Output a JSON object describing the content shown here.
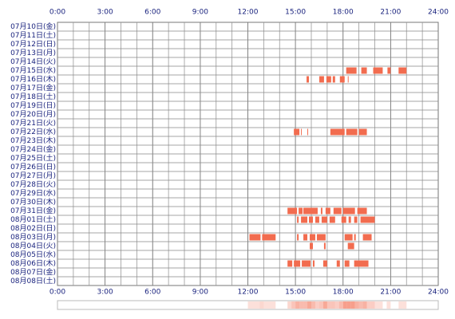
{
  "chart_data": {
    "type": "timeline",
    "categories": [
      "07月10日(金)",
      "07月11日(土)",
      "07月12日(日)",
      "07月13日(月)",
      "07月14日(火)",
      "07月15日(水)",
      "07月16日(木)",
      "07月17日(金)",
      "07月18日(土)",
      "07月19日(日)",
      "07月20日(月)",
      "07月21日(火)",
      "07月22日(水)",
      "07月23日(木)",
      "07月24日(金)",
      "07月25日(土)",
      "07月26日(日)",
      "07月27日(月)",
      "07月28日(火)",
      "07月29日(水)",
      "07月30日(木)",
      "07月31日(金)",
      "08月01日(土)",
      "08月02日(日)",
      "08月03日(月)",
      "08月04日(火)",
      "08月05日(水)",
      "08月06日(木)",
      "08月07日(金)",
      "08月08日(土)"
    ],
    "segments": [
      [],
      [],
      [],
      [],
      [],
      [
        [
          18.2,
          18.85
        ],
        [
          19.15,
          19.5
        ],
        [
          19.9,
          20.5
        ],
        [
          20.8,
          21.0
        ],
        [
          21.5,
          22.0
        ]
      ],
      [
        [
          15.7,
          15.85
        ],
        [
          16.5,
          16.8
        ],
        [
          16.95,
          17.25
        ],
        [
          17.35,
          17.5
        ],
        [
          17.8,
          18.1
        ],
        [
          18.3,
          18.35
        ]
      ],
      [],
      [],
      [],
      [],
      [],
      [
        [
          14.9,
          15.25
        ],
        [
          15.35,
          15.4
        ],
        [
          15.75,
          15.8
        ],
        [
          17.2,
          18.1
        ],
        [
          18.2,
          18.9
        ],
        [
          19.0,
          19.5
        ]
      ],
      [],
      [],
      [],
      [],
      [],
      [],
      [],
      [],
      [
        [
          14.5,
          15.1
        ],
        [
          15.2,
          15.45
        ],
        [
          15.5,
          16.4
        ],
        [
          16.6,
          16.7
        ],
        [
          16.9,
          17.2
        ],
        [
          17.4,
          17.9
        ],
        [
          18.0,
          18.75
        ],
        [
          18.9,
          19.5
        ]
      ],
      [
        [
          15.1,
          15.2
        ],
        [
          15.35,
          15.75
        ],
        [
          15.85,
          16.1
        ],
        [
          16.25,
          16.5
        ],
        [
          16.65,
          17.0
        ],
        [
          17.15,
          17.5
        ],
        [
          17.9,
          18.2
        ],
        [
          18.35,
          18.5
        ],
        [
          18.7,
          18.9
        ],
        [
          19.1,
          20.0
        ]
      ],
      [],
      [
        [
          12.1,
          12.8
        ],
        [
          12.9,
          13.75
        ],
        [
          15.1,
          15.2
        ],
        [
          15.5,
          15.75
        ],
        [
          15.9,
          16.25
        ],
        [
          16.35,
          16.9
        ],
        [
          18.1,
          18.6
        ],
        [
          18.7,
          18.8
        ],
        [
          19.25,
          19.8
        ]
      ],
      [
        [
          15.9,
          16.1
        ],
        [
          16.8,
          16.9
        ],
        [
          18.3,
          18.7
        ]
      ],
      [],
      [
        [
          14.5,
          14.8
        ],
        [
          14.9,
          15.3
        ],
        [
          15.4,
          15.95
        ],
        [
          16.1,
          16.2
        ],
        [
          16.75,
          17.0
        ],
        [
          17.6,
          17.8
        ],
        [
          18.1,
          18.4
        ],
        [
          18.7,
          19.6
        ]
      ],
      [],
      []
    ],
    "xlim": [
      0,
      24
    ],
    "xticks": [
      {
        "value": 0,
        "label": "0:00"
      },
      {
        "value": 3,
        "label": "3:00"
      },
      {
        "value": 6,
        "label": "6:00"
      },
      {
        "value": 9,
        "label": "9:00"
      },
      {
        "value": 12,
        "label": "12:00"
      },
      {
        "value": 15,
        "label": "15:00"
      },
      {
        "value": 18,
        "label": "18:00"
      },
      {
        "value": 21,
        "label": "21:00"
      },
      {
        "value": 24,
        "label": "24:00"
      }
    ],
    "color": "#f26c4f"
  }
}
